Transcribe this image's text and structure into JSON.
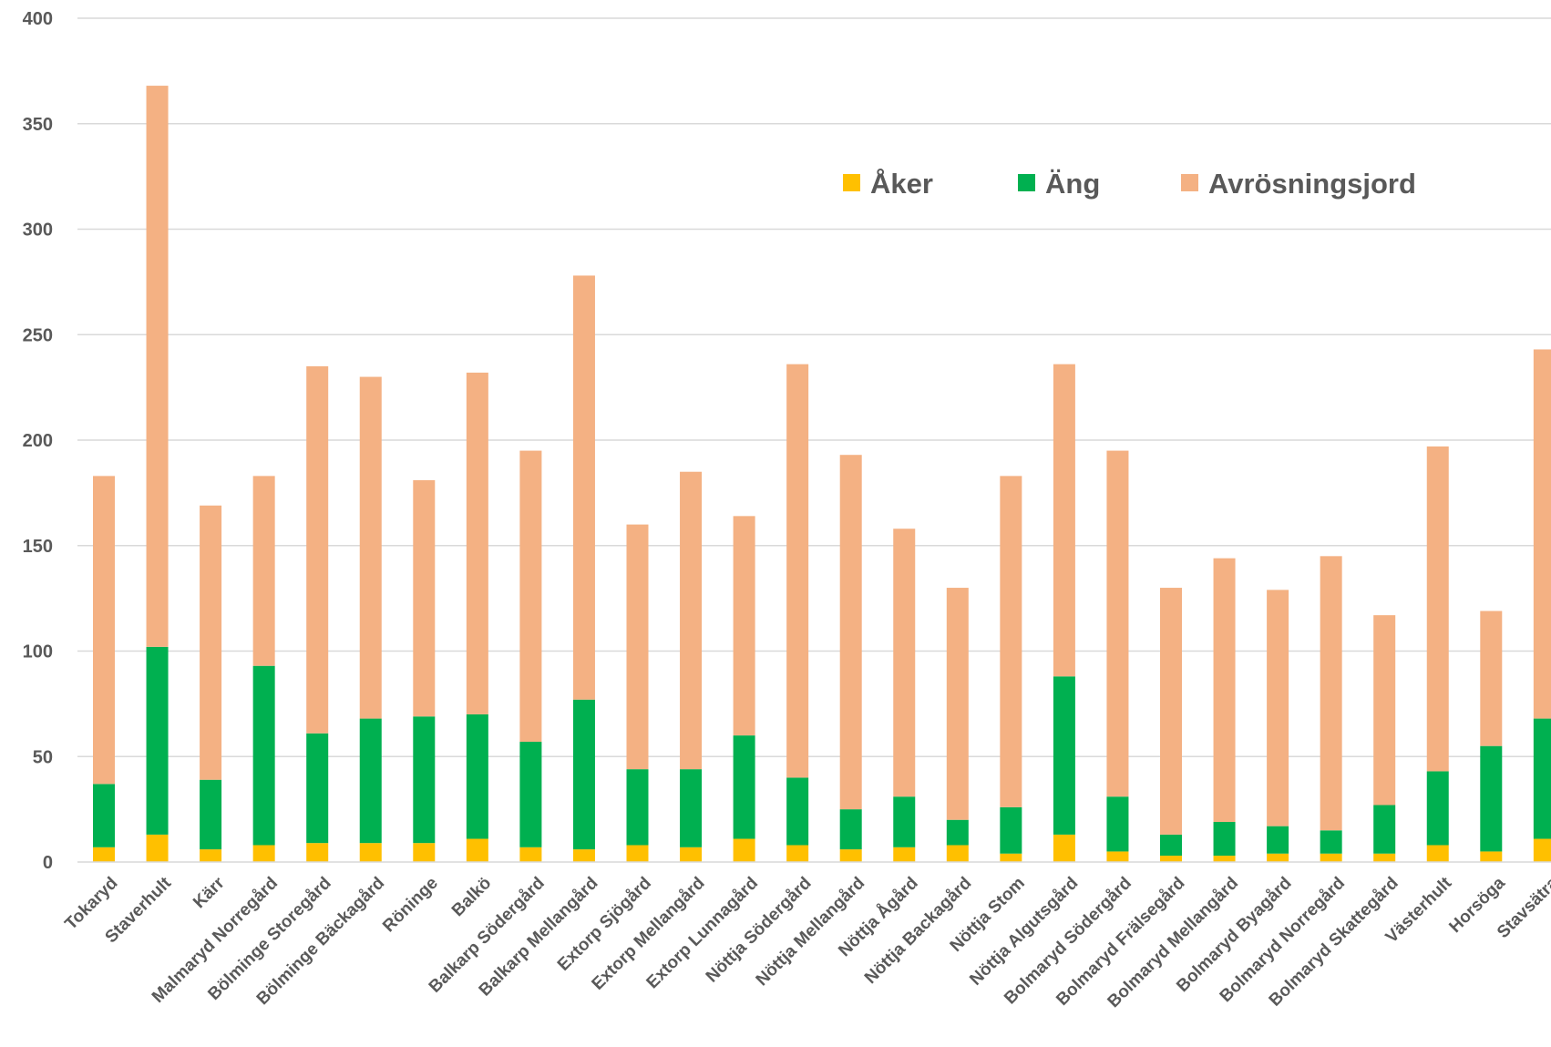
{
  "chart_data": {
    "type": "bar",
    "stacked": true,
    "ylim": [
      0,
      400
    ],
    "yticks": [
      0,
      50,
      100,
      150,
      200,
      250,
      300,
      350,
      400
    ],
    "grid": true,
    "legend_position": "top-right",
    "categories": [
      "Tokaryd",
      "Staverhult",
      "Kärr",
      "Malmaryd Norregård",
      "Bölminge Storegård",
      "Bölminge Bäckagård",
      "Röninge",
      "Balkö",
      "Balkarp Södergård",
      "Balkarp Mellangård",
      "Extorp Sjögård",
      "Extorp Mellangård",
      "Extorp Lunnagård",
      "Nöttja Södergård",
      "Nöttja Mellangård",
      "Nöttja Ågård",
      "Nöttja Backagård",
      "Nöttja Stom",
      "Nöttja Algutsgård",
      "Bolmaryd Södergård",
      "Bolmaryd Frälsegård",
      "Bolmaryd Mellangård",
      "Bolmaryd Byagård",
      "Bolmaryd Norregård",
      "Bolmaryd Skattegård",
      "Västerhult",
      "Horsöga",
      "Stavsätra"
    ],
    "series": [
      {
        "name": "Åker",
        "color": "#ffc000",
        "values": [
          7,
          13,
          6,
          8,
          9,
          9,
          9,
          11,
          7,
          6,
          8,
          7,
          11,
          8,
          6,
          7,
          8,
          4,
          13,
          5,
          3,
          3,
          4,
          4,
          4,
          8,
          5,
          11
        ]
      },
      {
        "name": "Äng",
        "color": "#00b050",
        "values": [
          30,
          89,
          33,
          85,
          52,
          59,
          60,
          59,
          50,
          71,
          36,
          37,
          49,
          32,
          19,
          24,
          12,
          22,
          75,
          26,
          10,
          16,
          13,
          11,
          23,
          35,
          50,
          57
        ]
      },
      {
        "name": "Avrösningsjord",
        "color": "#f4b183",
        "values": [
          146,
          266,
          130,
          90,
          174,
          162,
          112,
          162,
          138,
          201,
          116,
          141,
          104,
          196,
          168,
          127,
          110,
          157,
          148,
          164,
          117,
          125,
          112,
          130,
          90,
          154,
          64,
          175
        ]
      }
    ]
  }
}
